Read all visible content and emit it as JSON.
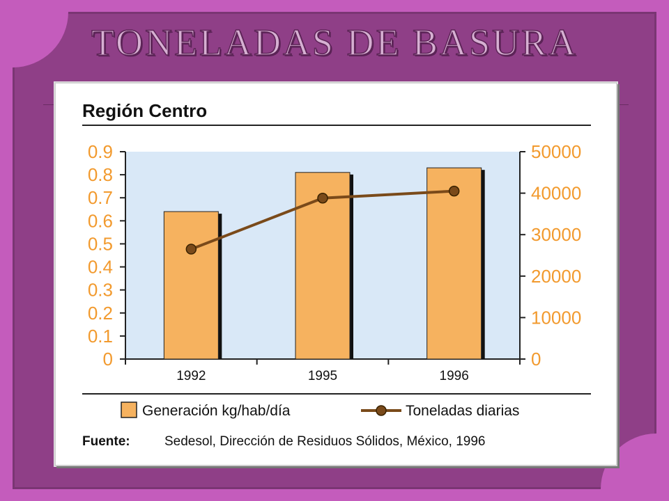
{
  "slide": {
    "title": "TONELADAS DE BASURA",
    "colors": {
      "background": "#c45cbc",
      "frame": "#8f3f87",
      "title_fill": "#d6b0d2"
    }
  },
  "chart_data": {
    "type": "bar",
    "title": "Región Centro",
    "categories": [
      "1992",
      "1995",
      "1996"
    ],
    "series": [
      {
        "name": "Generación kg/hab/día",
        "kind": "bar",
        "axis": "left",
        "color": "#f6b25f",
        "values": [
          0.64,
          0.81,
          0.83
        ]
      },
      {
        "name": "Toneladas diarias",
        "kind": "line",
        "axis": "right",
        "color": "#7a4a1a",
        "values": [
          26500,
          38800,
          40500
        ]
      }
    ],
    "ylim_left": [
      0,
      0.9
    ],
    "yticks_left": [
      "0",
      "0.1",
      "0.2",
      "0.3",
      "0.4",
      "0.5",
      "0.6",
      "0.7",
      "0.8",
      "0.9"
    ],
    "ylim_right": [
      0,
      50000
    ],
    "yticks_right": [
      "0",
      "10000",
      "20000",
      "30000",
      "40000",
      "50000"
    ],
    "plot_background": "#d9e8f7",
    "axis_label_color": "#f29a2e",
    "legend_position": "bottom",
    "source_label": "Fuente:",
    "source_text": "Sedesol, Dirección de Residuos Sólidos, México, 1996"
  }
}
